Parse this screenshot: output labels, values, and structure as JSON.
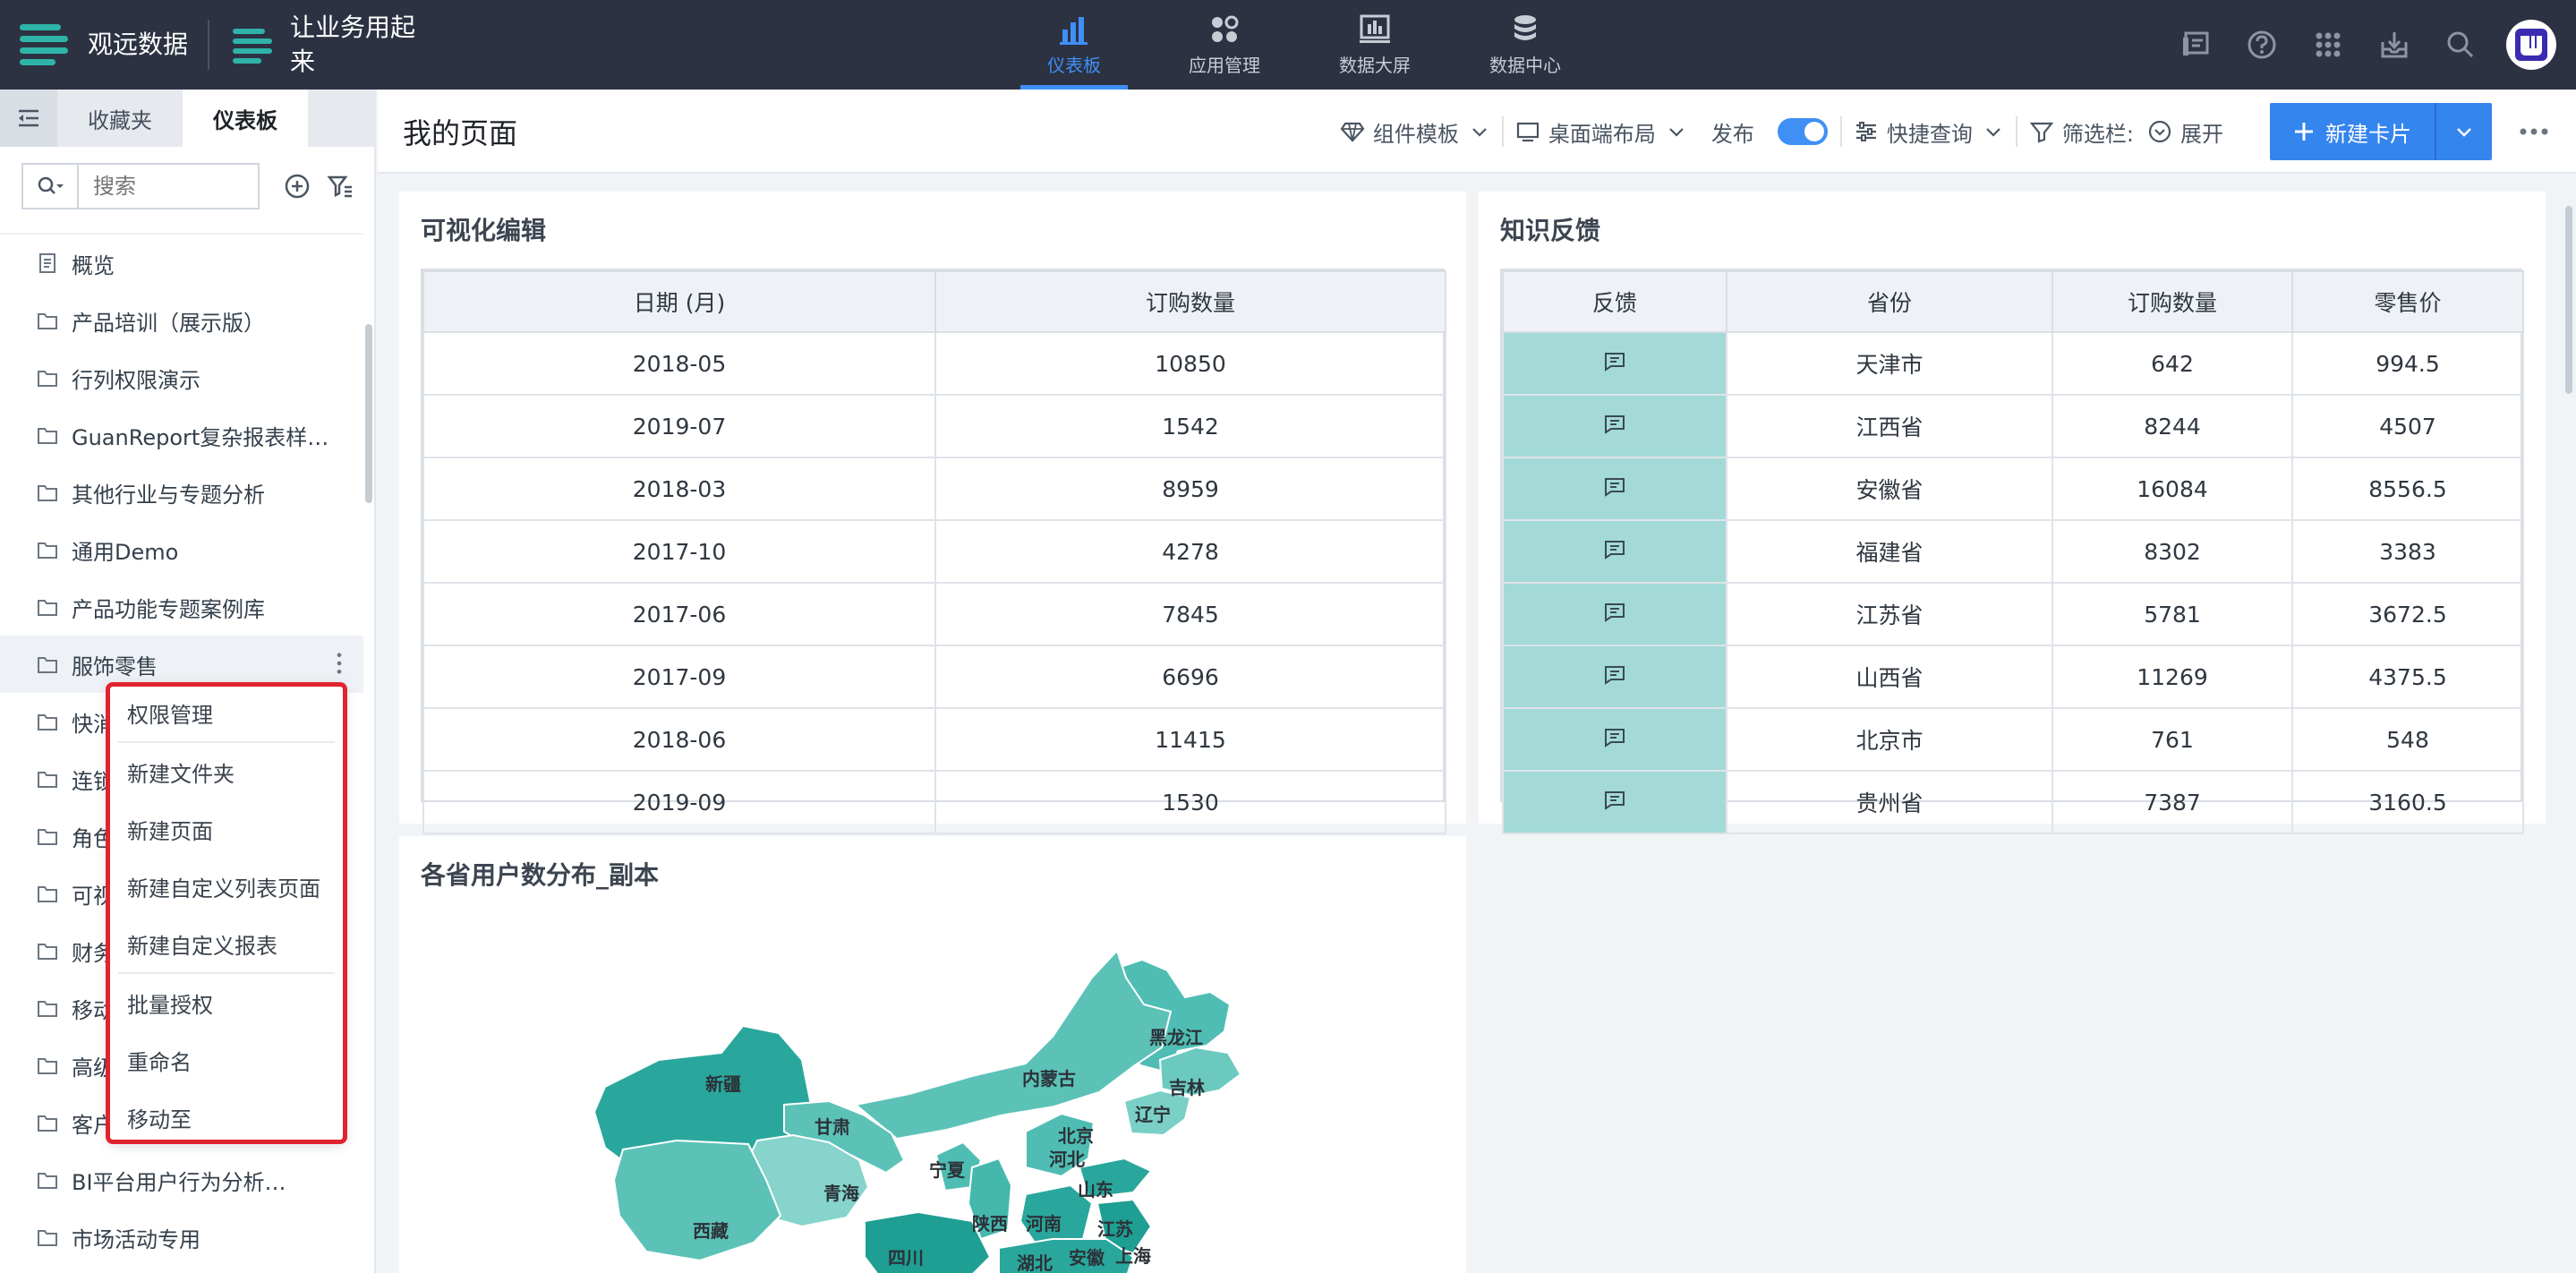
{
  "topbar": {
    "brand": "观远数据",
    "app": "让业务用起来",
    "nav": [
      {
        "label": "仪表板",
        "icon": "bar-chart-icon",
        "active": true
      },
      {
        "label": "应用管理",
        "icon": "apps-grid-icon",
        "active": false
      },
      {
        "label": "数据大屏",
        "icon": "screen-icon",
        "active": false
      },
      {
        "label": "数据中心",
        "icon": "database-icon",
        "active": false
      }
    ]
  },
  "sidebar": {
    "tabs": [
      "收藏夹",
      "仪表板"
    ],
    "search_placeholder": "搜索",
    "items": [
      {
        "label": "概览",
        "type": "page"
      },
      {
        "label": "产品培训（展示版）",
        "type": "folder"
      },
      {
        "label": "行列权限演示",
        "type": "folder"
      },
      {
        "label": "GuanReport复杂报表样…",
        "type": "folder"
      },
      {
        "label": "其他行业与专题分析",
        "type": "folder"
      },
      {
        "label": "通用Demo",
        "type": "folder"
      },
      {
        "label": "产品功能专题案例库",
        "type": "folder"
      },
      {
        "label": "服饰零售",
        "type": "folder"
      },
      {
        "label": "快消",
        "type": "folder"
      },
      {
        "label": "连锁",
        "type": "folder"
      },
      {
        "label": "角色",
        "type": "folder"
      },
      {
        "label": "可视",
        "type": "folder"
      },
      {
        "label": "财务",
        "type": "folder"
      },
      {
        "label": "移动",
        "type": "folder"
      },
      {
        "label": "高级",
        "type": "folder"
      },
      {
        "label": "客户",
        "type": "folder"
      },
      {
        "label": "BI平台用户行为分析…",
        "type": "folder"
      },
      {
        "label": "市场活动专用",
        "type": "folder"
      }
    ]
  },
  "context_menu": {
    "items": [
      "权限管理",
      "新建文件夹",
      "新建页面",
      "新建自定义列表页面",
      "新建自定义报表",
      "批量授权",
      "重命名",
      "移动至"
    ]
  },
  "header": {
    "title": "我的页面",
    "component_template": "组件模板",
    "desktop_layout": "桌面端布局",
    "publish": "发布",
    "quick_query": "快捷查询",
    "filter_bar": "筛选栏:",
    "expand": "展开",
    "new_card": "新建卡片"
  },
  "card1": {
    "title": "可视化编辑",
    "columns": [
      "日期 (月)",
      "订购数量"
    ],
    "rows": [
      [
        "2018-05",
        "10850"
      ],
      [
        "2019-07",
        "1542"
      ],
      [
        "2018-03",
        "8959"
      ],
      [
        "2017-10",
        "4278"
      ],
      [
        "2017-06",
        "7845"
      ],
      [
        "2017-09",
        "6696"
      ],
      [
        "2018-06",
        "11415"
      ],
      [
        "2019-09",
        "1530"
      ]
    ]
  },
  "card2": {
    "title": "知识反馈",
    "columns": [
      "反馈",
      "省份",
      "订购数量",
      "零售价"
    ],
    "rows": [
      [
        "天津市",
        "642",
        "994.5"
      ],
      [
        "江西省",
        "8244",
        "4507"
      ],
      [
        "安徽省",
        "16084",
        "8556.5"
      ],
      [
        "福建省",
        "8302",
        "3383"
      ],
      [
        "江苏省",
        "5781",
        "3672.5"
      ],
      [
        "山西省",
        "11269",
        "4375.5"
      ],
      [
        "北京市",
        "761",
        "548"
      ],
      [
        "贵州省",
        "7387",
        "3160.5"
      ]
    ]
  },
  "card3": {
    "title": "各省用户数分布_副本",
    "map_labels": [
      "黑龙江",
      "吉林",
      "内蒙古",
      "辽宁",
      "新疆",
      "甘肃",
      "北京",
      "河北",
      "宁夏",
      "青海",
      "山东",
      "西藏",
      "陕西",
      "河南",
      "江苏",
      "四川",
      "湖北",
      "安徽",
      "上海"
    ]
  },
  "colors": {
    "accent": "#3f8ff5",
    "topbar": "#2c3242",
    "feedback_cell": "#a3dad7",
    "menu_outline": "#e0242f"
  }
}
